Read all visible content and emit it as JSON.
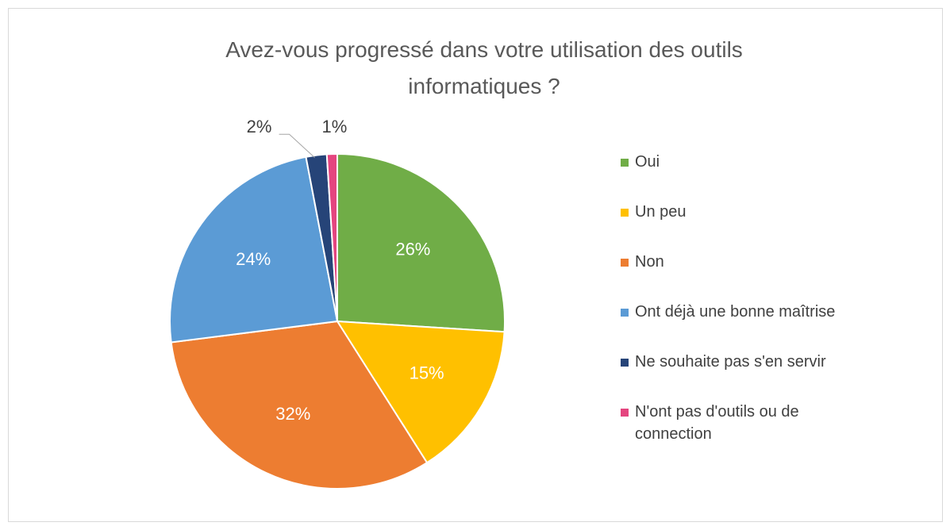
{
  "chart_data": {
    "type": "pie",
    "title": "Avez-vous progressé dans votre utilisation des outils informatiques ?",
    "categories": [
      "Oui",
      "Un peu",
      "Non",
      "Ont déjà une bonne maîtrise",
      "Ne souhaite pas s'en servir",
      "N'ont pas d'outils ou de connection"
    ],
    "values": [
      26,
      15,
      32,
      24,
      2,
      1
    ],
    "value_labels": [
      "26%",
      "15%",
      "32%",
      "24%",
      "2%",
      "1%"
    ],
    "colors": [
      "#70ad47",
      "#ffc000",
      "#ed7d31",
      "#5b9bd5",
      "#264478",
      "#e4457f"
    ],
    "legend": "right"
  }
}
